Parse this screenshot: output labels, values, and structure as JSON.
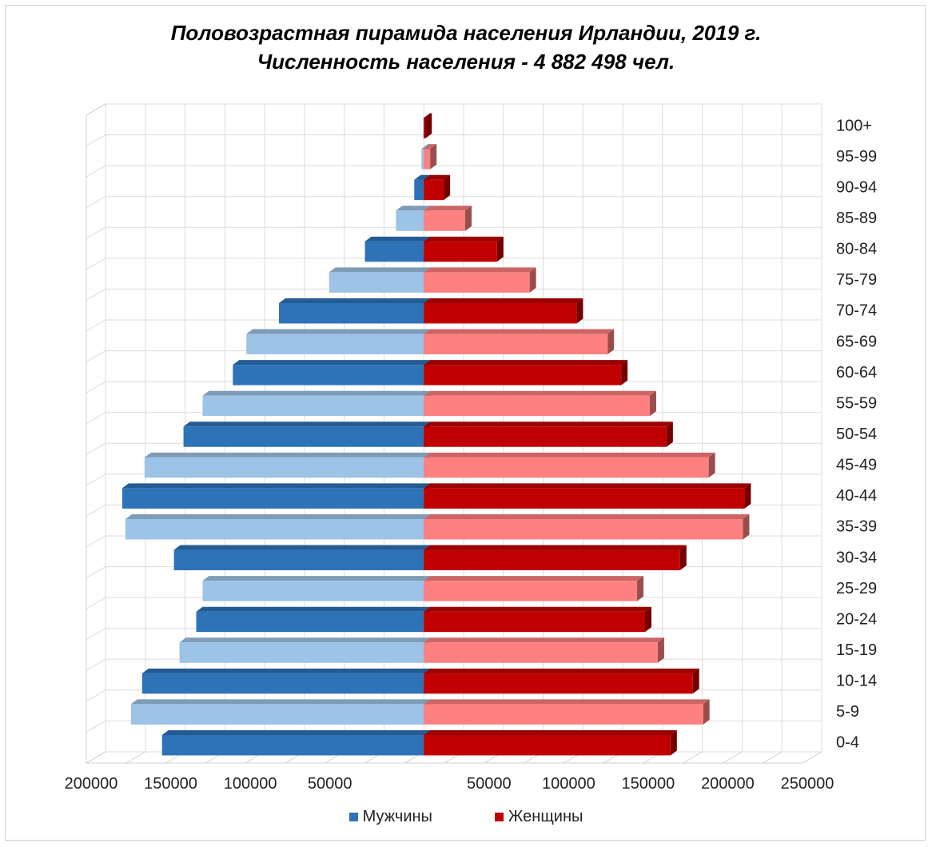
{
  "chart_data": {
    "type": "bar",
    "title": "Половозрастная пирамида населения Ирландии, 2019 г.",
    "subtitle": "Численность населения - 4 882 498 чел.",
    "categories": [
      "100+",
      "95-99",
      "90-94",
      "85-89",
      "80-84",
      "75-79",
      "70-74",
      "65-69",
      "60-64",
      "55-59",
      "50-54",
      "45-49",
      "40-44",
      "35-39",
      "30-34",
      "25-29",
      "20-24",
      "15-19",
      "10-14",
      "5-9",
      "0-4"
    ],
    "series": [
      {
        "name": "Мужчины",
        "values": [
          200,
          1500,
          6000,
          17500,
          37000,
          59500,
          91000,
          111500,
          120000,
          139000,
          151000,
          175500,
          189500,
          187500,
          157000,
          139000,
          143000,
          153500,
          177000,
          184000,
          164500
        ]
      },
      {
        "name": "Женщины",
        "values": [
          1000,
          4000,
          12500,
          26000,
          46000,
          66500,
          96000,
          115500,
          124000,
          142000,
          152500,
          179000,
          201500,
          200500,
          161000,
          134000,
          139000,
          147000,
          169000,
          175500,
          155000
        ]
      }
    ],
    "xlim": [
      -200000,
      250000
    ],
    "xticks": [
      "200000",
      "150000",
      "100000",
      "50000",
      "",
      "50000",
      "100000",
      "150000",
      "200000",
      "250000"
    ],
    "grid": true,
    "legend_position": "bottom",
    "colors": {
      "male_dark": "#2e72b8",
      "male_light": "#9dc3e6",
      "female_dark": "#c00000",
      "female_light": "#ff8080"
    }
  },
  "legend": {
    "male_label": "Мужчины",
    "female_label": "Женщины"
  }
}
